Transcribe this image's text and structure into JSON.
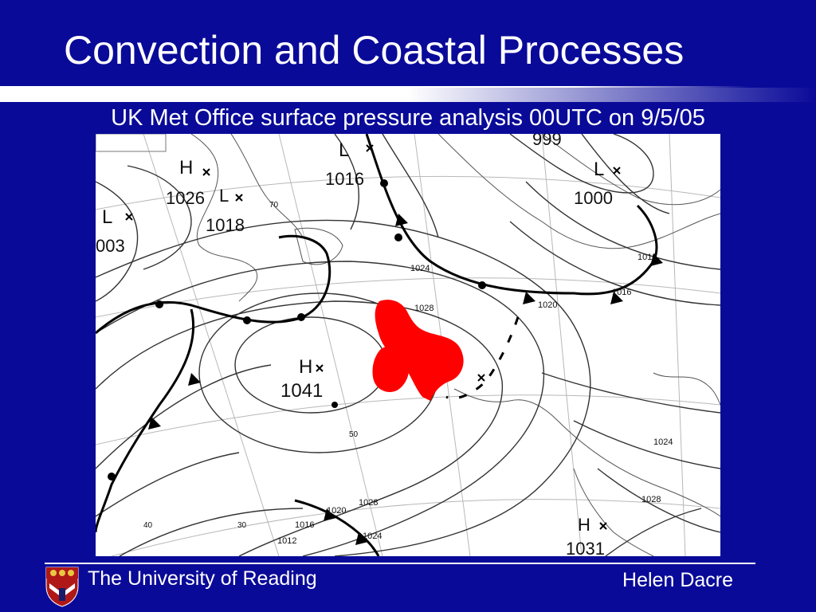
{
  "slide": {
    "title": "Convection and Coastal Processes",
    "subtitle": "UK Met Office surface pressure analysis 00UTC on 9/5/05"
  },
  "map": {
    "highs": [
      {
        "symbol": "H",
        "value": "1026"
      },
      {
        "symbol": "H",
        "value": "1041"
      },
      {
        "symbol": "H",
        "value": "1031"
      }
    ],
    "lows": [
      {
        "symbol": "L",
        "value": "003"
      },
      {
        "symbol": "L",
        "value": "1018"
      },
      {
        "symbol": "L",
        "value": "1016"
      },
      {
        "symbol": "L",
        "value": "1000"
      }
    ],
    "isobar_labels": [
      "999",
      "1012",
      "1016",
      "1020",
      "1024",
      "1028",
      "1012",
      "1016",
      "1020",
      "1024",
      "1028",
      "1028",
      "1024"
    ],
    "grid_labels": [
      "70",
      "40",
      "30",
      "50"
    ],
    "overlay_color": "#ff0000"
  },
  "footer": {
    "university": "The University of Reading",
    "author": "Helen Dacre"
  }
}
